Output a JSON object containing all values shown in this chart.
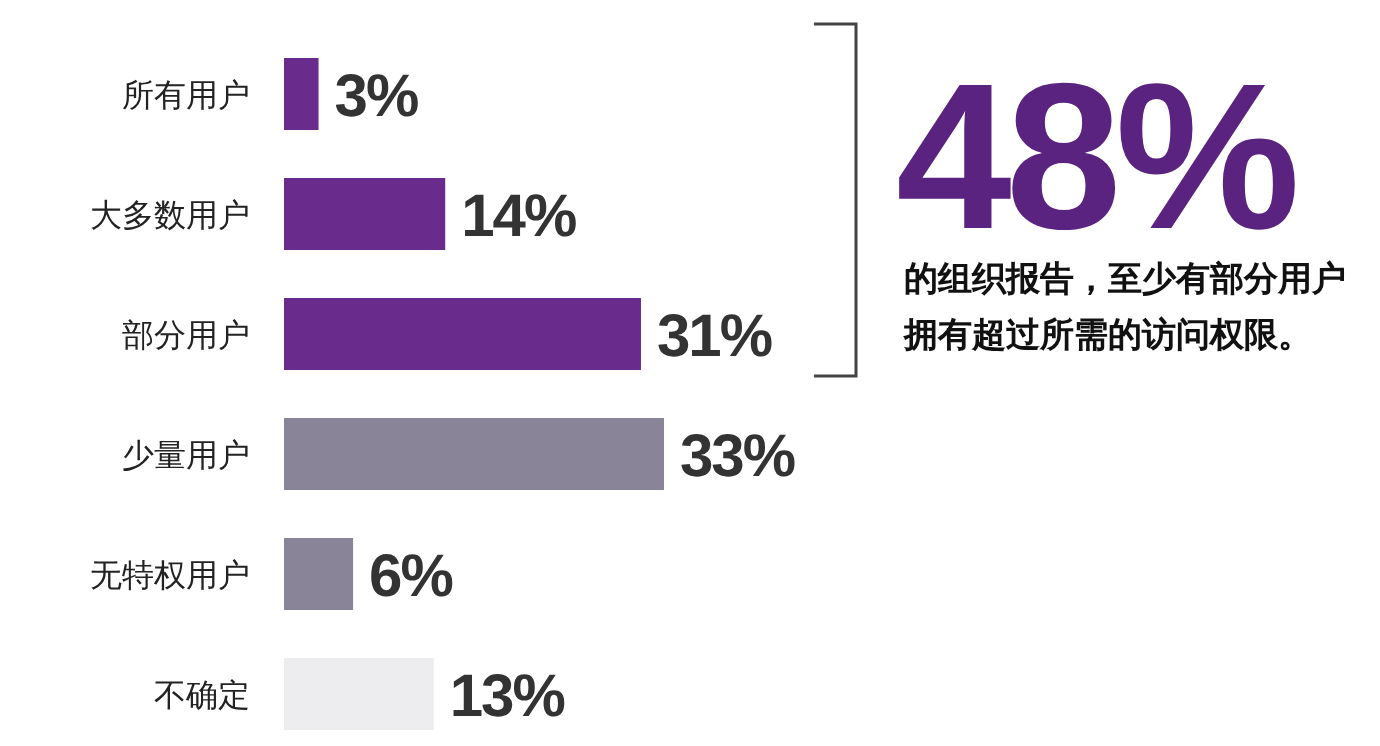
{
  "chart_data": {
    "type": "bar",
    "orientation": "horizontal",
    "categories": [
      "所有用户",
      "大多数用户",
      "部分用户",
      "少量用户",
      "无特权用户",
      "不确定"
    ],
    "values": [
      3,
      14,
      31,
      33,
      6,
      13
    ],
    "value_labels": [
      "3%",
      "14%",
      "31%",
      "33%",
      "6%",
      "13%"
    ],
    "colors": [
      "#6a2c8c",
      "#6a2c8c",
      "#6a2c8c",
      "#8a8498",
      "#8a8498",
      "#ededf0"
    ],
    "annotations": [
      "48%",
      "的组织报告，至少有部分用户拥有超过所需的访问权限。"
    ]
  }
}
